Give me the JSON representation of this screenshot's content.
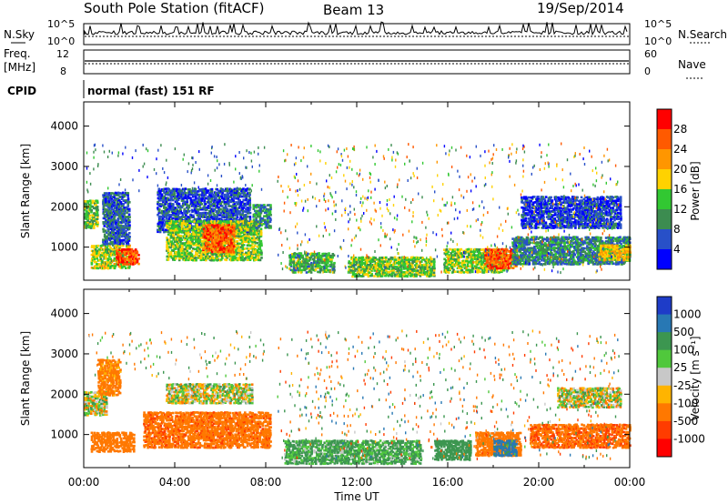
{
  "header": {
    "station": "South Pole Station (fitACF)",
    "beam": "Beam 13",
    "date": "19/Sep/2014"
  },
  "top_panels": {
    "nsky_label": "N.Sky",
    "nsearch_label": "N.Search",
    "noise_ticks": [
      "10^5",
      "10^0"
    ],
    "noise_ticks_right": [
      "10^5",
      "10^0"
    ],
    "freq_label_1": "Freq.",
    "freq_label_2": "[MHz]",
    "freq_ticks": [
      "12",
      "8"
    ],
    "nave_label": "Nave",
    "nave_ticks": [
      "60",
      "0"
    ],
    "cpid_label": "CPID",
    "cpid_value": "normal (fast) 151 RF"
  },
  "chart_data": [
    {
      "type": "heatmap",
      "name": "power",
      "ylabel": "Slant Range [km]",
      "x_ticks": [
        "00:00",
        "04:00",
        "08:00",
        "12:00",
        "16:00",
        "20:00",
        "00:00"
      ],
      "xlim_hours": [
        0,
        24
      ],
      "y_ticks": [
        1000,
        2000,
        3000,
        4000
      ],
      "ylim": [
        180,
        4600
      ],
      "colorbar_label": "Power [dB]",
      "colorbar_ticks": [
        "4",
        "8",
        "12",
        "16",
        "20",
        "24",
        "28"
      ],
      "colorbar_colors": [
        "#0000ff",
        "#2850c8",
        "#3c8c50",
        "#32c832",
        "#ffd200",
        "#ff9600",
        "#ff5a00",
        "#ff0000"
      ],
      "regions": [
        {
          "t0": 0.0,
          "t1": 0.6,
          "r0": 1500,
          "r1": 2200,
          "v": 14
        },
        {
          "t0": 0.3,
          "t1": 2.0,
          "r0": 500,
          "r1": 1100,
          "v": 16
        },
        {
          "t0": 1.4,
          "t1": 2.4,
          "r0": 600,
          "r1": 1000,
          "v": 27
        },
        {
          "t0": 0.8,
          "t1": 2.0,
          "r0": 1100,
          "r1": 2400,
          "v": 7
        },
        {
          "t0": 3.2,
          "t1": 7.3,
          "r0": 1400,
          "r1": 2500,
          "v": 6
        },
        {
          "t0": 3.6,
          "t1": 7.8,
          "r0": 700,
          "r1": 1700,
          "v": 15
        },
        {
          "t0": 5.2,
          "t1": 6.6,
          "r0": 900,
          "r1": 1600,
          "v": 26
        },
        {
          "t0": 7.4,
          "t1": 8.2,
          "r0": 1500,
          "r1": 2100,
          "v": 10
        },
        {
          "t0": 9.0,
          "t1": 11.0,
          "r0": 400,
          "r1": 900,
          "v": 12
        },
        {
          "t0": 11.6,
          "t1": 15.4,
          "r0": 300,
          "r1": 800,
          "v": 14
        },
        {
          "t0": 15.8,
          "t1": 18.6,
          "r0": 400,
          "r1": 1000,
          "v": 15
        },
        {
          "t0": 17.6,
          "t1": 19.0,
          "r0": 500,
          "r1": 1000,
          "v": 26
        },
        {
          "t0": 18.8,
          "t1": 24.0,
          "r0": 600,
          "r1": 1300,
          "v": 9
        },
        {
          "t0": 19.2,
          "t1": 23.6,
          "r0": 1500,
          "r1": 2300,
          "v": 5
        },
        {
          "t0": 22.6,
          "t1": 24.0,
          "r0": 700,
          "r1": 1100,
          "v": 19
        }
      ]
    },
    {
      "type": "heatmap",
      "name": "velocity",
      "ylabel": "Slant Range [km]",
      "x_ticks": [
        "00:00",
        "04:00",
        "08:00",
        "12:00",
        "16:00",
        "20:00",
        "00:00"
      ],
      "xlabel": "Time UT",
      "xlim_hours": [
        0,
        24
      ],
      "y_ticks": [
        1000,
        2000,
        3000,
        4000
      ],
      "ylim": [
        180,
        4600
      ],
      "colorbar_label": "Velocity [m s⁻¹]",
      "colorbar_ticks": [
        "1000",
        "500",
        "100",
        "25",
        "-25",
        "-100",
        "-500",
        "-1000"
      ],
      "colorbar_colors": [
        "#1e3cc8",
        "#2878b4",
        "#3c9650",
        "#50c83c",
        "#c8c8c8",
        "#ffb400",
        "#ff7800",
        "#ff3c00",
        "#ff0000"
      ],
      "regions": [
        {
          "t0": 0.0,
          "t1": 1.0,
          "r0": 1500,
          "r1": 2100,
          "v": 0
        },
        {
          "t0": 0.3,
          "t1": 2.2,
          "r0": 600,
          "r1": 1100,
          "v": -300
        },
        {
          "t0": 0.6,
          "t1": 1.6,
          "r0": 2000,
          "r1": 2900,
          "v": -200
        },
        {
          "t0": 2.6,
          "t1": 8.2,
          "r0": 700,
          "r1": 1600,
          "v": -400
        },
        {
          "t0": 3.6,
          "t1": 7.4,
          "r0": 1800,
          "r1": 2300,
          "v": 0
        },
        {
          "t0": 8.8,
          "t1": 14.8,
          "r0": 300,
          "r1": 900,
          "v": 150
        },
        {
          "t0": 15.4,
          "t1": 17.0,
          "r0": 400,
          "r1": 900,
          "v": 300
        },
        {
          "t0": 17.2,
          "t1": 19.2,
          "r0": 500,
          "r1": 1100,
          "v": -300
        },
        {
          "t0": 18.0,
          "t1": 19.0,
          "r0": 500,
          "r1": 900,
          "v": 600
        },
        {
          "t0": 19.6,
          "t1": 24.0,
          "r0": 700,
          "r1": 1300,
          "v": -450
        },
        {
          "t0": 20.8,
          "t1": 23.6,
          "r0": 1700,
          "r1": 2200,
          "v": 0
        }
      ]
    }
  ]
}
